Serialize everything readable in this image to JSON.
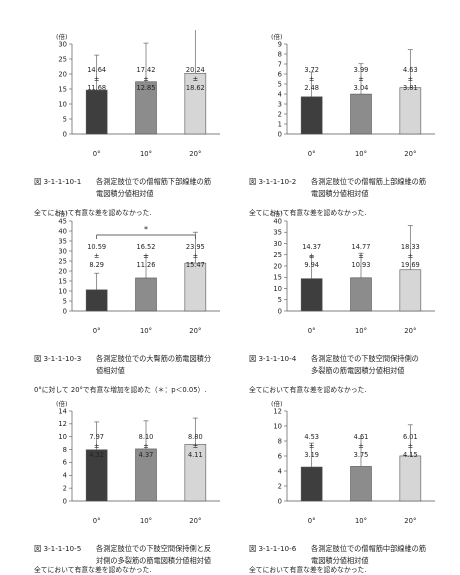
{
  "chart_data": [
    {
      "type": "bar",
      "unit_label": "(倍)",
      "ylim": [
        0,
        30
      ],
      "yticks": [
        0,
        5,
        10,
        15,
        20,
        25,
        30
      ],
      "categories": [
        "0°",
        "10°",
        "20°"
      ],
      "values": [
        14.64,
        17.42,
        20.24
      ],
      "sd": [
        11.68,
        12.85,
        18.62
      ],
      "err_top": [
        26.3,
        30.3,
        38.9
      ],
      "label_pm": "±",
      "bar_colors": [
        "#3e3e3e",
        "#8c8c8c",
        "#d6d6d6"
      ],
      "significance": null,
      "caption_num": "図 3-1-1-10-1",
      "caption_line1": "各測定肢位での僧帽筋下部線維の筋",
      "caption_line2": "電図積分値相対値",
      "note": "全てにおいて有意な差を認めなかった."
    },
    {
      "type": "bar",
      "unit_label": "(倍)",
      "ylim": [
        0,
        9
      ],
      "yticks": [
        0,
        1,
        2,
        3,
        4,
        5,
        6,
        7,
        8,
        9
      ],
      "categories": [
        "0°",
        "10°",
        "20°"
      ],
      "values": [
        3.72,
        3.99,
        4.63
      ],
      "sd": [
        2.48,
        3.04,
        3.81
      ],
      "err_top": [
        6.2,
        7.03,
        8.44
      ],
      "label_pm": "±",
      "bar_colors": [
        "#3e3e3e",
        "#8c8c8c",
        "#d6d6d6"
      ],
      "significance": null,
      "caption_num": "図 3-1-1-10-2",
      "caption_line1": "各測定肢位での僧帽筋上部線維の筋",
      "caption_line2": "電図積分値相対値",
      "note": "全てにおいて有意な差を認めなかった."
    },
    {
      "type": "bar",
      "unit_label": "(倍)",
      "ylim": [
        0,
        45
      ],
      "yticks": [
        0,
        5,
        10,
        15,
        20,
        25,
        30,
        35,
        40,
        45
      ],
      "categories": [
        "0°",
        "10°",
        "20°"
      ],
      "values": [
        10.59,
        16.52,
        23.95
      ],
      "sd": [
        8.29,
        11.26,
        15.47
      ],
      "err_top": [
        18.9,
        27.8,
        39.4
      ],
      "label_pm": "±",
      "bar_colors": [
        "#3e3e3e",
        "#8c8c8c",
        "#d6d6d6"
      ],
      "significance": {
        "symbol": "*",
        "level": 38
      },
      "caption_num": "図 3-1-1-10-3",
      "caption_line1": "各測定肢位での大臀筋の筋電図積分",
      "caption_line2": "値相対値",
      "note": "0°に対して 20°で有意な増加を認めた（＊：p＜0.05）."
    },
    {
      "type": "bar",
      "unit_label": "(倍)",
      "ylim": [
        0,
        40
      ],
      "yticks": [
        0,
        5,
        10,
        15,
        20,
        25,
        30,
        35,
        40
      ],
      "categories": [
        "0°",
        "10°",
        "20°"
      ],
      "values": [
        14.37,
        14.77,
        18.33
      ],
      "sd": [
        9.94,
        10.93,
        19.69
      ],
      "err_top": [
        24.3,
        25.7,
        38.0
      ],
      "label_pm": "±",
      "bar_colors": [
        "#3e3e3e",
        "#8c8c8c",
        "#d6d6d6"
      ],
      "significance": null,
      "caption_num": "図 3-1-1-10-4",
      "caption_line1": "各測定肢位での下肢空間保持側の",
      "caption_line2": "多裂筋の筋電図積分値相対値",
      "note": "全てにおいて有意な差を認めなかった."
    },
    {
      "type": "bar",
      "unit_label": "(倍)",
      "ylim": [
        0,
        14
      ],
      "yticks": [
        0,
        2,
        4,
        6,
        8,
        10,
        12,
        14
      ],
      "categories": [
        "0°",
        "10°",
        "20°"
      ],
      "values": [
        7.97,
        8.1,
        8.8
      ],
      "sd": [
        4.32,
        4.37,
        4.11
      ],
      "err_top": [
        12.3,
        12.47,
        12.9
      ],
      "label_pm": "±",
      "bar_colors": [
        "#3e3e3e",
        "#8c8c8c",
        "#d6d6d6"
      ],
      "significance": null,
      "caption_num": "図 3-1-1-10-5",
      "caption_line1": "各測定肢位での下肢空間保持側と反",
      "caption_line2": "対側の多裂筋の筋電図積分値相対値",
      "note": "全てにおいて有意な差を認めなかった."
    },
    {
      "type": "bar",
      "unit_label": "(倍)",
      "ylim": [
        0,
        12
      ],
      "yticks": [
        0,
        2,
        4,
        6,
        8,
        10,
        12
      ],
      "categories": [
        "0°",
        "10°",
        "20°"
      ],
      "values": [
        4.53,
        4.61,
        6.01
      ],
      "sd": [
        3.19,
        3.75,
        4.15
      ],
      "err_top": [
        7.72,
        8.36,
        10.16
      ],
      "label_pm": "±",
      "bar_colors": [
        "#3e3e3e",
        "#8c8c8c",
        "#d6d6d6"
      ],
      "significance": null,
      "caption_num": "図 3-1-1-10-6",
      "caption_line1": "各測定肢位での僧帽筋中部線維の筋",
      "caption_line2": "電図積分値相対値",
      "note": "全てにおいて有意な差を認めなかった."
    }
  ]
}
